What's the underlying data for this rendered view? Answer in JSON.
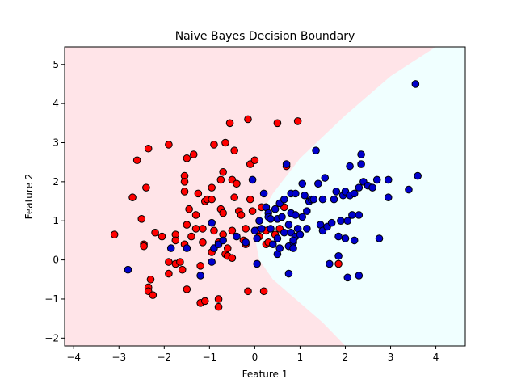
{
  "chart_data": {
    "type": "scatter",
    "title": "Naive Bayes Decision Boundary",
    "xlabel": "Feature 1",
    "ylabel": "Feature 2",
    "xlim": [
      -4.2,
      4.65
    ],
    "ylim": [
      -2.2,
      5.45
    ],
    "xticks": [
      -4,
      -3,
      -2,
      -1,
      0,
      1,
      2,
      3,
      4
    ],
    "yticks": [
      -2,
      -1,
      0,
      1,
      2,
      3,
      4,
      5
    ],
    "grid": false,
    "legend": "none",
    "colors": {
      "class0": "#ff0000",
      "class1": "#0000cc",
      "region0": "#ffe4e8",
      "region1": "#f0ffff",
      "marker_edge": "#000000"
    },
    "decision_boundary": [
      [
        4.0,
        5.45
      ],
      [
        3.0,
        4.7
      ],
      [
        2.0,
        3.7
      ],
      [
        1.0,
        2.6
      ],
      [
        0.4,
        1.7
      ],
      [
        0.15,
        1.2
      ],
      [
        0.0,
        0.6
      ],
      [
        0.1,
        0.0
      ],
      [
        0.4,
        -0.5
      ],
      [
        1.0,
        -1.1
      ],
      [
        1.5,
        -1.6
      ],
      [
        2.0,
        -2.2
      ]
    ],
    "series": [
      {
        "values": [
          [
            -3.1,
            0.65
          ],
          [
            -2.7,
            1.6
          ],
          [
            -2.6,
            2.55
          ],
          [
            -2.5,
            1.05
          ],
          [
            -2.45,
            0.4
          ],
          [
            -2.45,
            0.35
          ],
          [
            -2.4,
            1.85
          ],
          [
            -2.35,
            2.85
          ],
          [
            -2.3,
            -0.5
          ],
          [
            -2.35,
            -0.7
          ],
          [
            -2.35,
            -0.8
          ],
          [
            -2.25,
            -0.9
          ],
          [
            -2.2,
            0.7
          ],
          [
            -2.05,
            0.6
          ],
          [
            -1.9,
            2.95
          ],
          [
            -1.9,
            -0.05
          ],
          [
            -1.9,
            -0.35
          ],
          [
            -1.75,
            0.65
          ],
          [
            -1.75,
            0.5
          ],
          [
            -1.75,
            -0.1
          ],
          [
            -1.65,
            -0.05
          ],
          [
            -1.6,
            -0.25
          ],
          [
            -1.55,
            2.15
          ],
          [
            -1.55,
            2.0
          ],
          [
            -1.55,
            1.75
          ],
          [
            -1.55,
            0.4
          ],
          [
            -1.5,
            2.6
          ],
          [
            -1.5,
            0.9
          ],
          [
            -1.5,
            -0.75
          ],
          [
            -1.45,
            1.3
          ],
          [
            -1.4,
            0.6
          ],
          [
            -1.35,
            2.7
          ],
          [
            -1.3,
            1.15
          ],
          [
            -1.3,
            0.8
          ],
          [
            -1.25,
            1.7
          ],
          [
            -1.2,
            -1.1
          ],
          [
            -1.2,
            -0.15
          ],
          [
            -1.15,
            0.8
          ],
          [
            -1.15,
            0.45
          ],
          [
            -1.1,
            1.5
          ],
          [
            -1.1,
            -1.05
          ],
          [
            -1.05,
            1.55
          ],
          [
            -0.95,
            1.55
          ],
          [
            -0.95,
            1.85
          ],
          [
            -0.95,
            0.2
          ],
          [
            -0.9,
            0.75
          ],
          [
            -0.9,
            2.95
          ],
          [
            -0.8,
            0.45
          ],
          [
            -0.8,
            -1.0
          ],
          [
            -0.8,
            -1.2
          ],
          [
            -0.75,
            2.05
          ],
          [
            -0.75,
            1.3
          ],
          [
            -0.7,
            2.25
          ],
          [
            -0.7,
            1.2
          ],
          [
            -0.7,
            0.65
          ],
          [
            -0.65,
            0.15
          ],
          [
            -0.65,
            3.0
          ],
          [
            -0.6,
            0.3
          ],
          [
            -0.6,
            0.1
          ],
          [
            -0.55,
            3.5
          ],
          [
            -0.5,
            2.05
          ],
          [
            -0.5,
            0.75
          ],
          [
            -0.5,
            0.05
          ],
          [
            -0.45,
            2.8
          ],
          [
            -0.45,
            1.6
          ],
          [
            -0.4,
            1.95
          ],
          [
            -0.35,
            1.25
          ],
          [
            -0.3,
            1.15
          ],
          [
            -0.25,
            0.5
          ],
          [
            -0.2,
            0.8
          ],
          [
            -0.2,
            0.4
          ],
          [
            -0.15,
            3.6
          ],
          [
            -0.15,
            -0.8
          ],
          [
            -0.1,
            2.45
          ],
          [
            -0.1,
            1.55
          ],
          [
            -0.05,
            1.25
          ],
          [
            0.0,
            2.55
          ],
          [
            0.05,
            0.75
          ],
          [
            0.1,
            0.6
          ],
          [
            0.15,
            1.35
          ],
          [
            0.2,
            -0.8
          ],
          [
            0.25,
            0.75
          ],
          [
            0.25,
            0.4
          ],
          [
            0.3,
            0.45
          ],
          [
            0.45,
            0.65
          ],
          [
            0.5,
            3.5
          ],
          [
            0.55,
            0.8
          ],
          [
            0.65,
            1.35
          ],
          [
            0.7,
            2.4
          ],
          [
            0.95,
            3.55
          ],
          [
            1.85,
            -0.1
          ]
        ]
      },
      {
        "values": [
          [
            -2.8,
            -0.25
          ],
          [
            -1.85,
            0.3
          ],
          [
            -1.5,
            0.3
          ],
          [
            -1.2,
            -0.4
          ],
          [
            -0.95,
            0.95
          ],
          [
            -0.95,
            -0.05
          ],
          [
            -0.9,
            0.3
          ],
          [
            -0.8,
            0.4
          ],
          [
            -0.7,
            0.5
          ],
          [
            -0.4,
            0.6
          ],
          [
            -0.2,
            0.45
          ],
          [
            -0.05,
            2.05
          ],
          [
            0.0,
            0.75
          ],
          [
            0.05,
            0.55
          ],
          [
            0.05,
            -0.1
          ],
          [
            0.1,
            1.0
          ],
          [
            0.15,
            0.8
          ],
          [
            0.2,
            1.7
          ],
          [
            0.25,
            1.35
          ],
          [
            0.3,
            1.2
          ],
          [
            0.3,
            1.1
          ],
          [
            0.35,
            1.05
          ],
          [
            0.35,
            0.8
          ],
          [
            0.4,
            0.4
          ],
          [
            0.45,
            1.3
          ],
          [
            0.5,
            1.05
          ],
          [
            0.5,
            0.55
          ],
          [
            0.5,
            0.15
          ],
          [
            0.55,
            1.45
          ],
          [
            0.55,
            0.3
          ],
          [
            0.6,
            1.1
          ],
          [
            0.65,
            1.55
          ],
          [
            0.65,
            0.7
          ],
          [
            0.7,
            2.45
          ],
          [
            0.75,
            0.35
          ],
          [
            0.75,
            0.9
          ],
          [
            0.8,
            1.7
          ],
          [
            0.8,
            1.2
          ],
          [
            0.8,
            0.7
          ],
          [
            0.85,
            0.45
          ],
          [
            0.85,
            0.3
          ],
          [
            0.9,
            1.7
          ],
          [
            0.9,
            1.15
          ],
          [
            0.9,
            0.6
          ],
          [
            0.95,
            0.8
          ],
          [
            1.0,
            0.65
          ],
          [
            1.05,
            1.1
          ],
          [
            1.05,
            1.95
          ],
          [
            1.1,
            1.65
          ],
          [
            1.15,
            1.25
          ],
          [
            1.15,
            0.8
          ],
          [
            1.2,
            1.5
          ],
          [
            1.25,
            1.55
          ],
          [
            1.3,
            1.55
          ],
          [
            1.35,
            2.8
          ],
          [
            1.4,
            1.95
          ],
          [
            1.45,
            0.9
          ],
          [
            1.5,
            1.55
          ],
          [
            1.5,
            0.75
          ],
          [
            1.55,
            2.1
          ],
          [
            1.6,
            0.85
          ],
          [
            1.65,
            -0.1
          ],
          [
            1.7,
            0.95
          ],
          [
            1.75,
            1.55
          ],
          [
            1.8,
            1.75
          ],
          [
            1.85,
            0.6
          ],
          [
            1.85,
            0.1
          ],
          [
            1.9,
            1.0
          ],
          [
            1.95,
            1.65
          ],
          [
            2.0,
            1.75
          ],
          [
            2.0,
            0.55
          ],
          [
            2.05,
            1.0
          ],
          [
            2.1,
            2.4
          ],
          [
            2.1,
            1.65
          ],
          [
            2.15,
            1.15
          ],
          [
            2.2,
            1.7
          ],
          [
            2.2,
            0.5
          ],
          [
            2.3,
            1.85
          ],
          [
            2.3,
            1.15
          ],
          [
            2.35,
            2.45
          ],
          [
            2.35,
            2.7
          ],
          [
            2.4,
            2.0
          ],
          [
            2.5,
            1.9
          ],
          [
            2.6,
            1.85
          ],
          [
            2.7,
            2.05
          ],
          [
            2.75,
            0.55
          ],
          [
            2.95,
            2.05
          ],
          [
            2.95,
            1.6
          ],
          [
            3.4,
            1.8
          ],
          [
            3.55,
            4.5
          ],
          [
            3.6,
            2.15
          ],
          [
            2.05,
            -0.45
          ],
          [
            2.3,
            -0.4
          ],
          [
            0.75,
            -0.35
          ],
          [
            0.85,
            0.5
          ]
        ]
      }
    ]
  }
}
